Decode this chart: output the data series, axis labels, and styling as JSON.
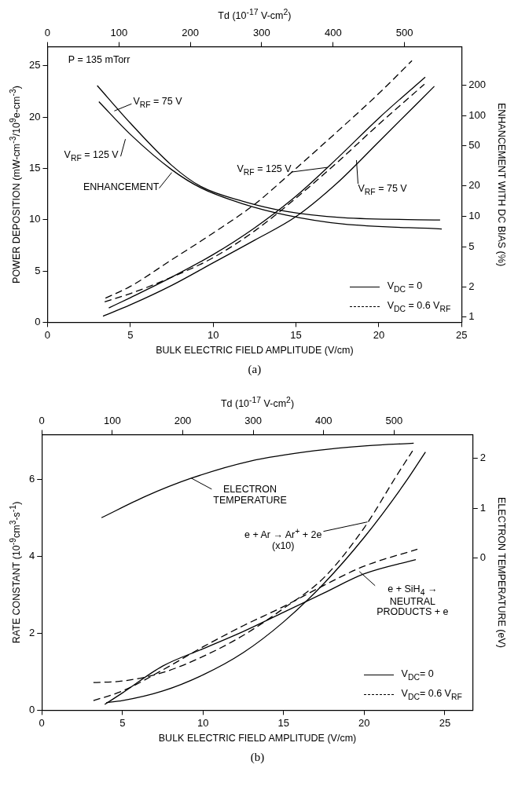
{
  "chart_data": [
    {
      "type": "line",
      "title": "(a)",
      "xlabel": "BULK ELECTRIC FIELD AMPLITUDE (V/cm)",
      "ylabel": "POWER DEPOSITION (mW-cm$^{-3}$/10$^{9}$e-cm$^{-3}$)",
      "y2label": "ENHANCEMENT WITH DC BIAS (%)",
      "x2label": "Td (10$^{-17}$ V-cm$^{2}$)",
      "xlim": [
        0,
        25
      ],
      "xticks": [
        0,
        5,
        10,
        15,
        20,
        25
      ],
      "ylim": [
        0,
        26.85
      ],
      "yticks": [
        0,
        5,
        10,
        15,
        20,
        25
      ],
      "y2lim": [
        0.89,
        480
      ],
      "y2ticks": [
        1,
        2,
        5,
        10,
        20,
        50,
        100,
        200
      ],
      "x2lim": [
        0,
        580
      ],
      "x2ticks": [
        0,
        100,
        200,
        300,
        400,
        500
      ],
      "log": "y2",
      "grid": false,
      "legend": "bottom right",
      "marker": "none",
      "series": [
        {
          "name": "V$_{DC}$ = 0",
          "color": "#000000",
          "line_style": "solid",
          "x": [
            3.7,
            5,
            7.5,
            10,
            12.5,
            15,
            17.5,
            20,
            22.8
          ],
          "values": [
            1.4,
            2.4,
            4.4,
            6.6,
            9.2,
            12.3,
            16.0,
            19.9,
            23.9
          ]
        },
        {
          "name": "V$_{DC}$ = 0.6 V$_{RF}$",
          "color": "#000000",
          "line_style": "dashed",
          "x": [
            3.5,
            5,
            7.5,
            10,
            12.5,
            15,
            17.5,
            20,
            22
          ],
          "values": [
            2.35,
            3.5,
            6.1,
            8.7,
            11.5,
            15.0,
            18.6,
            22.3,
            25.5
          ]
        },
        {
          "color": "#000000",
          "line_style": "solid",
          "x": [
            3.35,
            5,
            7.5,
            10,
            12.5,
            15,
            17.5,
            20,
            23.35
          ],
          "values": [
            0.6,
            1.7,
            3.6,
            5.8,
            8.0,
            10.3,
            13.6,
            17.6,
            23.0
          ]
        },
        {
          "color": "#000000",
          "line_style": "dashed",
          "x": [
            3.45,
            5,
            7.5,
            10,
            12.5,
            15,
            17.5,
            20,
            22.75
          ],
          "values": [
            2.0,
            2.8,
            4.4,
            6.3,
            8.9,
            12.1,
            15.6,
            19.3,
            23.2
          ]
        },
        {
          "color": "#000000",
          "line_style": "solid",
          "axis": "y2",
          "x": [
            3.0,
            5.0,
            7.5,
            9.25,
            11.8,
            14.4,
            17.8,
            23.7
          ],
          "values": [
            198,
            84,
            32,
            19.8,
            14.1,
            11.2,
            9.7,
            9.2
          ]
        },
        {
          "color": "#000000",
          "line_style": "solid",
          "axis": "y2",
          "x": [
            3.1,
            5.0,
            7.5,
            9.25,
            11.8,
            14.4,
            17.8,
            23.8
          ],
          "values": [
            137,
            65,
            29,
            19.2,
            13.3,
            10.3,
            8.4,
            7.5
          ]
        }
      ],
      "annotations": [
        "P = 135 mTorr",
        {
          "text": "V$_{RF}$ = 75 V",
          "x": 4.03,
          "y": 20.6
        },
        "V$_{RF}$ = 125 V",
        {
          "text": "ENHANCEMENT",
          "x": 7.5,
          "y": 14.6
        },
        {
          "text": "V$_{RF}$ = 125 V",
          "x": 16.9,
          "y": 15.1
        },
        {
          "text": "V$_{RF}$ = 75 V",
          "x": 18.65,
          "y": 15.8
        }
      ]
    },
    {
      "type": "line",
      "title": "(b)",
      "xlabel": "BULK ELECTRIC FIELD AMPLITUDE (V/cm)",
      "ylabel": "RATE CONSTANT (10$^{-9}$cm$^{3}$-s$^{-1}$)",
      "y2label": "ELECTRON TEMPERATURE (eV)",
      "x2label": "Td (10$^{-17}$ V-cm$^{2}$)",
      "xlim": [
        0,
        26.75
      ],
      "xticks": [
        0,
        5,
        10,
        15,
        20,
        25
      ],
      "ylim": [
        0,
        7.17
      ],
      "yticks": [
        0,
        2,
        4,
        6
      ],
      "y2lim": [
        -3.04,
        2.47
      ],
      "y2ticks": [
        0,
        1,
        2
      ],
      "x2lim": [
        0,
        612
      ],
      "x2ticks": [
        0,
        100,
        200,
        300,
        400,
        500
      ],
      "grid": false,
      "legend": "bottom right",
      "marker": "none",
      "series": [
        {
          "name": "V$_{DC}$= 0",
          "color": "#000000",
          "line_style": "solid",
          "x": [
            4,
            5,
            7.5,
            10,
            12.5,
            15,
            17.5,
            20,
            22.5,
            23.8
          ],
          "values": [
            0.2,
            0.25,
            0.5,
            0.92,
            1.5,
            2.3,
            3.3,
            4.5,
            5.9,
            6.72
          ]
        },
        {
          "name": "V$_{DC}$= 0.6 V$_{RF}$",
          "color": "#000000",
          "line_style": "dashed",
          "x": [
            3.2,
            5,
            7.5,
            10,
            12.5,
            15,
            17.5,
            20,
            22,
            23
          ],
          "values": [
            0.72,
            0.76,
            0.98,
            1.4,
            1.95,
            2.65,
            3.45,
            4.75,
            6.1,
            6.75
          ]
        },
        {
          "color": "#000000",
          "line_style": "solid",
          "x": [
            3.9,
            5,
            7.5,
            10,
            12.5,
            15,
            17.5,
            20,
            23.2
          ],
          "values": [
            0.15,
            0.45,
            1.15,
            1.6,
            2.05,
            2.55,
            3.05,
            3.55,
            3.92
          ]
        },
        {
          "color": "#000000",
          "line_style": "dashed",
          "x": [
            3.2,
            5,
            7.5,
            10,
            12.5,
            15,
            17.5,
            20,
            23.3
          ],
          "values": [
            0.25,
            0.5,
            1.05,
            1.65,
            2.2,
            2.7,
            3.25,
            3.75,
            4.19
          ]
        },
        {
          "color": "#000000",
          "line_style": "solid",
          "axis": "y2",
          "x": [
            3.7,
            6.45,
            9.27,
            12.9,
            16.94,
            20.17,
            23.07
          ],
          "values": [
            0.81,
            1.24,
            1.6,
            1.94,
            2.15,
            2.25,
            2.3
          ]
        }
      ],
      "annotations": [
        {
          "text": "ELECTRON\nTEMPERATURE",
          "x": 9.27,
          "y": 6.04
        },
        {
          "text": "e + Ar → Ar$^{+}$ + 2e\n(x10)",
          "x": 20.2,
          "y": 4.9
        },
        {
          "text": "e + SiH$_{4}$ →\nNEUTRAL\nPRODUCTS + e",
          "x": 19.7,
          "y": 3.61
        }
      ]
    }
  ]
}
